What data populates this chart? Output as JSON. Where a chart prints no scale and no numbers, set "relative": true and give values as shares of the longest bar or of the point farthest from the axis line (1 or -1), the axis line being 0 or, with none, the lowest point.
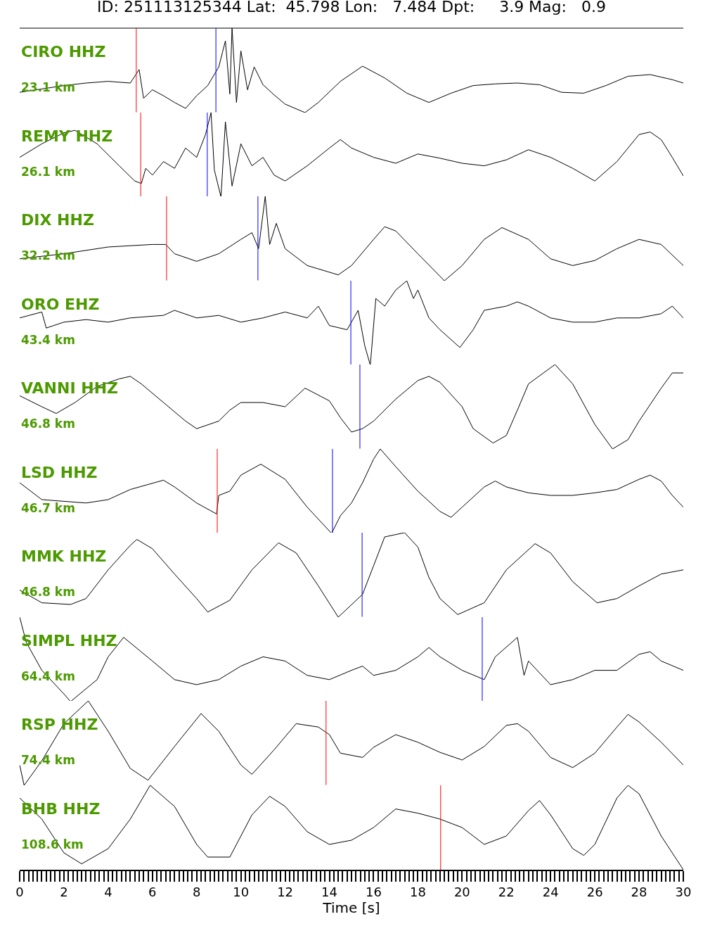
{
  "chart_data": [
    {
      "type": "line",
      "relative": true,
      "title": "ID: 251113125344 Lat:  45.798 Lon:   7.484 Dpt:     3.9 Mag:   0.9",
      "annotations": [
        "CIRO HHZ",
        "23.1 km"
      ],
      "xlim": [
        0,
        30
      ],
      "tick_labels": false,
      "series": [
        {
          "color": "#000000",
          "x": [
            0,
            1,
            2,
            3,
            4,
            5,
            5.4,
            5.6,
            6,
            6.5,
            7,
            7.5,
            8,
            8.5,
            9,
            9.3,
            9.5,
            9.6,
            9.8,
            10,
            10.3,
            10.6,
            11,
            11.5,
            12,
            12.9,
            13.5,
            14.5,
            15.5,
            16.5,
            17.5,
            18.5,
            19.5,
            20.5,
            21.5,
            22.5,
            23.5,
            24.5,
            25.5,
            26.5,
            27.5,
            28.5,
            29.5,
            30
          ],
          "values": [
            0.24,
            0.28,
            0.32,
            0.35,
            0.37,
            0.35,
            0.51,
            0.17,
            0.27,
            0.2,
            0.12,
            0.05,
            0.2,
            0.32,
            0.54,
            0.85,
            0.22,
            1,
            0.12,
            0.73,
            0.27,
            0.54,
            0.33,
            0.21,
            0.1,
            0,
            0.12,
            0.37,
            0.55,
            0.41,
            0.23,
            0.12,
            0.23,
            0.32,
            0.34,
            0.35,
            0.33,
            0.24,
            0.23,
            0.32,
            0.43,
            0.45,
            0.39,
            0.35
          ]
        }
      ],
      "ref_lines": [
        {
          "axis": "x",
          "value": 5.27,
          "color": "#ff0000"
        },
        {
          "axis": "x",
          "value": 8.87,
          "color": "#0000ff"
        }
      ]
    },
    {
      "type": "line",
      "relative": true,
      "annotations": [
        "REMY HHZ",
        "26.1 km"
      ],
      "xlim": [
        0,
        30
      ],
      "tick_labels": false,
      "series": [
        {
          "color": "#000000",
          "x": [
            0,
            1,
            2,
            2.5,
            3.5,
            4.5,
            5.2,
            5.5,
            5.7,
            6,
            6.5,
            7,
            7.5,
            8,
            8.4,
            8.65,
            8.8,
            9.1,
            9.3,
            9.6,
            10,
            10.5,
            11,
            11.5,
            12,
            13,
            14,
            14.5,
            15,
            16,
            17,
            18,
            19,
            20,
            21,
            22,
            23,
            24,
            25,
            26,
            27,
            28,
            28.5,
            29,
            29.5,
            30
          ],
          "values": [
            0.47,
            0.63,
            0.76,
            0.79,
            0.63,
            0.37,
            0.19,
            0.16,
            0.34,
            0.26,
            0.42,
            0.34,
            0.58,
            0.47,
            0.74,
            1,
            0.32,
            0,
            0.89,
            0.13,
            0.63,
            0.37,
            0.47,
            0.26,
            0.19,
            0.37,
            0.58,
            0.68,
            0.58,
            0.47,
            0.4,
            0.51,
            0.46,
            0.4,
            0.37,
            0.44,
            0.56,
            0.47,
            0.34,
            0.19,
            0.42,
            0.74,
            0.77,
            0.68,
            0.47,
            0.25
          ]
        }
      ],
      "ref_lines": [
        {
          "axis": "x",
          "value": 5.47,
          "color": "#ff0000"
        },
        {
          "axis": "x",
          "value": 8.48,
          "color": "#0000ff"
        }
      ]
    },
    {
      "type": "line",
      "relative": true,
      "annotations": [
        "DIX HHZ",
        "32.2 km"
      ],
      "xlim": [
        0,
        30
      ],
      "tick_labels": false,
      "series": [
        {
          "color": "#000000",
          "x": [
            0,
            2,
            4,
            6,
            6.6,
            7,
            8,
            9,
            10,
            10.5,
            10.8,
            11.1,
            11.3,
            11.6,
            12,
            13,
            14.4,
            15,
            16,
            16.5,
            17,
            18,
            19.2,
            20,
            21,
            21.8,
            23,
            24,
            25,
            26,
            27,
            28,
            29,
            30
          ],
          "values": [
            0.26,
            0.32,
            0.4,
            0.43,
            0.43,
            0.32,
            0.23,
            0.32,
            0.49,
            0.57,
            0.38,
            1,
            0.43,
            0.68,
            0.38,
            0.18,
            0.07,
            0.18,
            0.49,
            0.64,
            0.59,
            0.32,
            0,
            0.18,
            0.49,
            0.63,
            0.49,
            0.26,
            0.18,
            0.24,
            0.38,
            0.49,
            0.43,
            0.18
          ]
        }
      ],
      "ref_lines": [
        {
          "axis": "x",
          "value": 6.64,
          "color": "#ff0000"
        },
        {
          "axis": "x",
          "value": 10.77,
          "color": "#0000ff"
        }
      ]
    },
    {
      "type": "line",
      "relative": true,
      "annotations": [
        "ORO EHZ",
        "43.4 km"
      ],
      "xlim": [
        0,
        30
      ],
      "tick_labels": false,
      "series": [
        {
          "color": "#000000",
          "x": [
            0,
            1,
            1.2,
            2,
            3,
            4,
            5,
            6.5,
            7,
            8,
            9,
            10,
            11,
            12,
            13,
            13.5,
            14,
            14.8,
            15.3,
            15.6,
            15.85,
            16.1,
            16.5,
            17,
            17.5,
            17.8,
            18,
            18.5,
            19,
            19.9,
            20.5,
            21,
            22,
            22.5,
            23,
            24,
            25,
            26,
            27,
            28,
            29,
            29.5,
            30
          ],
          "values": [
            0.56,
            0.63,
            0.44,
            0.51,
            0.54,
            0.51,
            0.56,
            0.59,
            0.65,
            0.56,
            0.59,
            0.51,
            0.56,
            0.63,
            0.56,
            0.7,
            0.47,
            0.42,
            0.65,
            0.23,
            0,
            0.79,
            0.7,
            0.89,
            1,
            0.79,
            0.89,
            0.56,
            0.42,
            0.21,
            0.42,
            0.65,
            0.7,
            0.75,
            0.7,
            0.56,
            0.51,
            0.51,
            0.56,
            0.56,
            0.61,
            0.7,
            0.56
          ]
        }
      ],
      "ref_lines": [
        {
          "axis": "x",
          "value": 14.97,
          "color": "#0000ff"
        }
      ]
    },
    {
      "type": "line",
      "relative": true,
      "annotations": [
        "VANNI HHZ",
        "46.8 km"
      ],
      "xlim": [
        0,
        30
      ],
      "tick_labels": false,
      "series": [
        {
          "color": "#000000",
          "x": [
            0,
            1,
            1.65,
            2.5,
            3.5,
            4.5,
            5,
            5.5,
            6.5,
            7.5,
            8,
            9,
            9.5,
            10,
            11,
            12,
            12.9,
            14,
            14.5,
            15,
            15.5,
            16,
            17,
            18,
            18.5,
            19,
            20,
            20.5,
            21.4,
            22,
            22.5,
            23,
            24.2,
            25,
            26,
            26.8,
            27.5,
            28,
            29,
            29.5,
            30
          ],
          "values": [
            0.63,
            0.5,
            0.42,
            0.55,
            0.74,
            0.83,
            0.86,
            0.77,
            0.55,
            0.33,
            0.24,
            0.33,
            0.46,
            0.55,
            0.55,
            0.5,
            0.72,
            0.57,
            0.37,
            0.2,
            0.24,
            0.33,
            0.59,
            0.81,
            0.86,
            0.79,
            0.5,
            0.24,
            0.07,
            0.16,
            0.46,
            0.77,
            1,
            0.77,
            0.29,
            0,
            0.11,
            0.33,
            0.72,
            0.9,
            0.9
          ]
        }
      ],
      "ref_lines": [
        {
          "axis": "x",
          "value": 15.38,
          "color": "#0000ff"
        }
      ]
    },
    {
      "type": "line",
      "relative": true,
      "annotations": [
        "LSD HHZ",
        "46.7 km"
      ],
      "xlim": [
        0,
        30
      ],
      "tick_labels": false,
      "series": [
        {
          "color": "#000000",
          "x": [
            0,
            1,
            2,
            3,
            4,
            5,
            6.5,
            7,
            8,
            8.9,
            9,
            9.5,
            10,
            10.9,
            12,
            13,
            14.1,
            14.5,
            15,
            15.5,
            16,
            16.3,
            17,
            18,
            19,
            19.5,
            20,
            21,
            21.5,
            22,
            23,
            24,
            25,
            26,
            27,
            28,
            28.5,
            29,
            29.5,
            30
          ],
          "values": [
            0.6,
            0.4,
            0.38,
            0.36,
            0.4,
            0.52,
            0.63,
            0.55,
            0.36,
            0.23,
            0.45,
            0.5,
            0.69,
            0.82,
            0.64,
            0.31,
            0,
            0.21,
            0.36,
            0.6,
            0.88,
            1,
            0.79,
            0.5,
            0.26,
            0.19,
            0.31,
            0.55,
            0.62,
            0.55,
            0.48,
            0.45,
            0.45,
            0.48,
            0.52,
            0.64,
            0.69,
            0.62,
            0.45,
            0.31
          ]
        }
      ],
      "ref_lines": [
        {
          "axis": "x",
          "value": 8.93,
          "color": "#ff0000"
        },
        {
          "axis": "x",
          "value": 14.14,
          "color": "#0000ff"
        }
      ]
    },
    {
      "type": "line",
      "relative": true,
      "annotations": [
        "MMK HHZ",
        "46.8 km"
      ],
      "xlim": [
        0,
        30
      ],
      "tick_labels": false,
      "series": [
        {
          "color": "#000000",
          "x": [
            0,
            1,
            2.3,
            3,
            4,
            5,
            5.3,
            6,
            7,
            8,
            8.5,
            9.5,
            10.5,
            11.7,
            12.5,
            13.5,
            14.4,
            15.5,
            16,
            16.5,
            17.4,
            18,
            18.5,
            19,
            19.8,
            21,
            22,
            23.3,
            24,
            25,
            26.1,
            27,
            28,
            29,
            30
          ],
          "values": [
            0.32,
            0.17,
            0.15,
            0.22,
            0.56,
            0.85,
            0.92,
            0.81,
            0.51,
            0.22,
            0.06,
            0.2,
            0.56,
            0.88,
            0.76,
            0.37,
            0,
            0.27,
            0.61,
            0.95,
            1,
            0.83,
            0.47,
            0.22,
            0.03,
            0.17,
            0.56,
            0.87,
            0.76,
            0.42,
            0.17,
            0.22,
            0.37,
            0.51,
            0.56
          ]
        }
      ],
      "ref_lines": [
        {
          "axis": "x",
          "value": 15.48,
          "color": "#0000ff"
        }
      ]
    },
    {
      "type": "line",
      "relative": true,
      "annotations": [
        "SIMPL HHZ",
        "64.4 km"
      ],
      "xlim": [
        0,
        30
      ],
      "tick_labels": false,
      "series": [
        {
          "color": "#000000",
          "x": [
            0,
            0.3,
            1,
            2,
            2.3,
            3.5,
            4,
            4.7,
            6,
            7,
            8,
            9,
            10,
            11,
            12,
            13,
            14,
            15,
            15.5,
            16,
            17,
            18,
            18.5,
            19,
            20,
            21,
            21.5,
            22.5,
            22.8,
            23,
            24,
            25,
            26,
            27,
            28,
            28.5,
            29,
            30
          ],
          "values": [
            1,
            0.7,
            0.37,
            0.09,
            0,
            0.26,
            0.53,
            0.76,
            0.48,
            0.26,
            0.2,
            0.26,
            0.42,
            0.53,
            0.48,
            0.31,
            0.26,
            0.37,
            0.42,
            0.31,
            0.37,
            0.53,
            0.64,
            0.53,
            0.37,
            0.26,
            0.53,
            0.76,
            0.31,
            0.48,
            0.2,
            0.26,
            0.37,
            0.37,
            0.56,
            0.59,
            0.48,
            0.37
          ]
        }
      ],
      "ref_lines": [
        {
          "axis": "x",
          "value": 20.91,
          "color": "#0000ff"
        }
      ]
    },
    {
      "type": "line",
      "relative": true,
      "annotations": [
        "RSP HHZ",
        "74.4 km"
      ],
      "xlim": [
        0,
        30
      ],
      "tick_labels": false,
      "series": [
        {
          "color": "#000000",
          "x": [
            0,
            0.2,
            1,
            2,
            3.1,
            4,
            5,
            5.8,
            7,
            8.2,
            9,
            10,
            10.5,
            11.5,
            12.5,
            13.5,
            14,
            14.5,
            15.5,
            16,
            17,
            18,
            19,
            20,
            21,
            22,
            22.5,
            23,
            24,
            25,
            26,
            27,
            27.5,
            28,
            29,
            30
          ],
          "values": [
            0.24,
            0,
            0.29,
            0.73,
            1,
            0.64,
            0.2,
            0.06,
            0.46,
            0.85,
            0.64,
            0.24,
            0.13,
            0.42,
            0.73,
            0.69,
            0.6,
            0.38,
            0.33,
            0.45,
            0.6,
            0.51,
            0.39,
            0.3,
            0.46,
            0.71,
            0.73,
            0.64,
            0.33,
            0.21,
            0.38,
            0.69,
            0.84,
            0.75,
            0.51,
            0.24
          ]
        }
      ],
      "ref_lines": [
        {
          "axis": "x",
          "value": 13.85,
          "color": "#ff0000"
        }
      ]
    },
    {
      "type": "line",
      "relative": true,
      "annotations": [
        "BHB HHZ",
        "108.6 km"
      ],
      "xlabel": "Time [s]",
      "xlim": [
        0,
        30
      ],
      "tick_labels": "x",
      "xticks": [
        0,
        {
          "value": 0.2,
          "label": null
        },
        {
          "value": 0.4,
          "label": null
        },
        {
          "value": 0.6,
          "label": null
        },
        {
          "value": 0.8,
          "label": null
        },
        {
          "value": 1,
          "label": null
        },
        {
          "value": 1.2,
          "label": null
        },
        {
          "value": 1.4,
          "label": null
        },
        {
          "value": 1.6,
          "label": null
        },
        {
          "value": 1.8,
          "label": null
        },
        2,
        {
          "value": 2.2,
          "label": null
        },
        {
          "value": 2.4,
          "label": null
        },
        {
          "value": 2.6,
          "label": null
        },
        {
          "value": 2.8,
          "label": null
        },
        {
          "value": 3,
          "label": null
        },
        {
          "value": 3.2,
          "label": null
        },
        {
          "value": 3.4,
          "label": null
        },
        {
          "value": 3.6,
          "label": null
        },
        {
          "value": 3.8,
          "label": null
        },
        4,
        {
          "value": 4.2,
          "label": null
        },
        {
          "value": 4.4,
          "label": null
        },
        {
          "value": 4.6,
          "label": null
        },
        {
          "value": 4.8,
          "label": null
        },
        {
          "value": 5,
          "label": null
        },
        {
          "value": 5.2,
          "label": null
        },
        {
          "value": 5.4,
          "label": null
        },
        {
          "value": 5.6,
          "label": null
        },
        {
          "value": 5.8,
          "label": null
        },
        6,
        {
          "value": 6.2,
          "label": null
        },
        {
          "value": 6.4,
          "label": null
        },
        {
          "value": 6.6,
          "label": null
        },
        {
          "value": 6.8,
          "label": null
        },
        {
          "value": 7,
          "label": null
        },
        {
          "value": 7.2,
          "label": null
        },
        {
          "value": 7.4,
          "label": null
        },
        {
          "value": 7.6,
          "label": null
        },
        {
          "value": 7.8,
          "label": null
        },
        8,
        {
          "value": 8.2,
          "label": null
        },
        {
          "value": 8.4,
          "label": null
        },
        {
          "value": 8.6,
          "label": null
        },
        {
          "value": 8.8,
          "label": null
        },
        {
          "value": 9,
          "label": null
        },
        {
          "value": 9.2,
          "label": null
        },
        {
          "value": 9.4,
          "label": null
        },
        {
          "value": 9.6,
          "label": null
        },
        {
          "value": 9.8,
          "label": null
        },
        10,
        {
          "value": 10.2,
          "label": null
        },
        {
          "value": 10.4,
          "label": null
        },
        {
          "value": 10.6,
          "label": null
        },
        {
          "value": 10.8,
          "label": null
        },
        {
          "value": 11,
          "label": null
        },
        {
          "value": 11.2,
          "label": null
        },
        {
          "value": 11.4,
          "label": null
        },
        {
          "value": 11.6,
          "label": null
        },
        {
          "value": 11.8,
          "label": null
        },
        12,
        {
          "value": 12.2,
          "label": null
        },
        {
          "value": 12.4,
          "label": null
        },
        {
          "value": 12.6,
          "label": null
        },
        {
          "value": 12.8,
          "label": null
        },
        {
          "value": 13,
          "label": null
        },
        {
          "value": 13.2,
          "label": null
        },
        {
          "value": 13.4,
          "label": null
        },
        {
          "value": 13.6,
          "label": null
        },
        {
          "value": 13.8,
          "label": null
        },
        14,
        {
          "value": 14.2,
          "label": null
        },
        {
          "value": 14.4,
          "label": null
        },
        {
          "value": 14.6,
          "label": null
        },
        {
          "value": 14.8,
          "label": null
        },
        {
          "value": 15,
          "label": null
        },
        {
          "value": 15.2,
          "label": null
        },
        {
          "value": 15.4,
          "label": null
        },
        {
          "value": 15.6,
          "label": null
        },
        {
          "value": 15.8,
          "label": null
        },
        16,
        {
          "value": 16.2,
          "label": null
        },
        {
          "value": 16.4,
          "label": null
        },
        {
          "value": 16.6,
          "label": null
        },
        {
          "value": 16.8,
          "label": null
        },
        {
          "value": 17,
          "label": null
        },
        {
          "value": 17.2,
          "label": null
        },
        {
          "value": 17.4,
          "label": null
        },
        {
          "value": 17.6,
          "label": null
        },
        {
          "value": 17.8,
          "label": null
        },
        18,
        {
          "value": 18.2,
          "label": null
        },
        {
          "value": 18.4,
          "label": null
        },
        {
          "value": 18.6,
          "label": null
        },
        {
          "value": 18.8,
          "label": null
        },
        {
          "value": 19,
          "label": null
        },
        {
          "value": 19.2,
          "label": null
        },
        {
          "value": 19.4,
          "label": null
        },
        {
          "value": 19.6,
          "label": null
        },
        {
          "value": 19.8,
          "label": null
        },
        20,
        {
          "value": 20.2,
          "label": null
        },
        {
          "value": 20.4,
          "label": null
        },
        {
          "value": 20.6,
          "label": null
        },
        {
          "value": 20.8,
          "label": null
        },
        {
          "value": 21,
          "label": null
        },
        {
          "value": 21.2,
          "label": null
        },
        {
          "value": 21.4,
          "label": null
        },
        {
          "value": 21.6,
          "label": null
        },
        {
          "value": 21.8,
          "label": null
        },
        22,
        {
          "value": 22.2,
          "label": null
        },
        {
          "value": 22.4,
          "label": null
        },
        {
          "value": 22.6,
          "label": null
        },
        {
          "value": 22.8,
          "label": null
        },
        {
          "value": 23,
          "label": null
        },
        {
          "value": 23.2,
          "label": null
        },
        {
          "value": 23.4,
          "label": null
        },
        {
          "value": 23.6,
          "label": null
        },
        {
          "value": 23.8,
          "label": null
        },
        24,
        {
          "value": 24.2,
          "label": null
        },
        {
          "value": 24.4,
          "label": null
        },
        {
          "value": 24.6,
          "label": null
        },
        {
          "value": 24.8,
          "label": null
        },
        {
          "value": 25,
          "label": null
        },
        {
          "value": 25.2,
          "label": null
        },
        {
          "value": 25.4,
          "label": null
        },
        {
          "value": 25.6,
          "label": null
        },
        {
          "value": 25.8,
          "label": null
        },
        26,
        {
          "value": 26.2,
          "label": null
        },
        {
          "value": 26.4,
          "label": null
        },
        {
          "value": 26.6,
          "label": null
        },
        {
          "value": 26.8,
          "label": null
        },
        {
          "value": 27,
          "label": null
        },
        {
          "value": 27.2,
          "label": null
        },
        {
          "value": 27.4,
          "label": null
        },
        {
          "value": 27.6,
          "label": null
        },
        {
          "value": 27.8,
          "label": null
        },
        28,
        {
          "value": 28.2,
          "label": null
        },
        {
          "value": 28.4,
          "label": null
        },
        {
          "value": 28.6,
          "label": null
        },
        {
          "value": 28.8,
          "label": null
        },
        {
          "value": 29,
          "label": null
        },
        {
          "value": 29.2,
          "label": null
        },
        {
          "value": 29.4,
          "label": null
        },
        {
          "value": 29.6,
          "label": null
        },
        {
          "value": 29.8,
          "label": null
        },
        30
      ],
      "series": [
        {
          "color": "#000000",
          "x": [
            0,
            1,
            2,
            2.8,
            4,
            5,
            5.9,
            7,
            8,
            8.5,
            9.5,
            10.5,
            11.3,
            12,
            13,
            14,
            15,
            16,
            17,
            18,
            19,
            20,
            21,
            22,
            23,
            23.5,
            24,
            25,
            25.5,
            26,
            27,
            27.5,
            28,
            29,
            30
          ],
          "values": [
            0.85,
            0.6,
            0.2,
            0.07,
            0.25,
            0.6,
            1,
            0.75,
            0.3,
            0.15,
            0.15,
            0.65,
            0.87,
            0.75,
            0.45,
            0.3,
            0.35,
            0.5,
            0.72,
            0.67,
            0.6,
            0.5,
            0.3,
            0.4,
            0.7,
            0.82,
            0.65,
            0.25,
            0.17,
            0.3,
            0.85,
            1,
            0.9,
            0.4,
            0
          ]
        }
      ],
      "ref_lines": [
        {
          "axis": "x",
          "value": 19.03,
          "color": "#ff0000"
        }
      ]
    }
  ]
}
